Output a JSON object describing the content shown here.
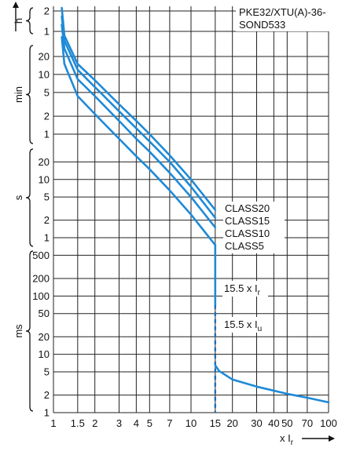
{
  "chart_data": {
    "type": "line",
    "title_lines": [
      "PKE32/XTU(A)-36-",
      "SOND533"
    ],
    "x_axis": {
      "scale": "log",
      "range": [
        1,
        100
      ],
      "ticks": [
        1,
        1.5,
        2,
        3,
        4,
        5,
        7,
        10,
        15,
        20,
        30,
        40,
        50,
        70,
        100
      ],
      "tick_labels": [
        "1",
        "1.5",
        "2",
        "3",
        "4",
        "5",
        "7",
        "10",
        "15",
        "20",
        "30",
        "40",
        "50",
        "70",
        "100"
      ],
      "label_prefix": "x I",
      "label_sub": "r"
    },
    "y_axis_bands": [
      {
        "unit": "h",
        "ticks": [
          1,
          2
        ],
        "labels": [
          "1",
          "2"
        ]
      },
      {
        "unit": "min",
        "ticks": [
          1,
          2,
          5,
          10,
          20
        ],
        "labels": [
          "1",
          "2",
          "5",
          "10",
          "20"
        ]
      },
      {
        "unit": "s",
        "ticks": [
          1,
          2,
          5,
          10,
          20
        ],
        "labels": [
          "1",
          "2",
          "5",
          "10",
          "20"
        ]
      },
      {
        "unit": "ms",
        "ticks": [
          1,
          2,
          5,
          10,
          20,
          50,
          100,
          200,
          500
        ],
        "labels": [
          "1",
          "2",
          "5",
          "10",
          "20",
          "50",
          "100",
          "200",
          "500"
        ]
      }
    ],
    "series": [
      {
        "name": "CLASS20",
        "points": [
          [
            1.15,
            8000
          ],
          [
            1.2,
            3000
          ],
          [
            1.5,
            900
          ],
          [
            2,
            480
          ],
          [
            3,
            190
          ],
          [
            4,
            100
          ],
          [
            5,
            60
          ],
          [
            7,
            26
          ],
          [
            10,
            10
          ],
          [
            15,
            3.0
          ]
        ]
      },
      {
        "name": "CLASS15",
        "points": [
          [
            1.15,
            6000
          ],
          [
            1.2,
            2400
          ],
          [
            1.5,
            720
          ],
          [
            2,
            370
          ],
          [
            3,
            145
          ],
          [
            4,
            75
          ],
          [
            5,
            45
          ],
          [
            7,
            20
          ],
          [
            10,
            7.5
          ],
          [
            15,
            2.2
          ]
        ]
      },
      {
        "name": "CLASS10",
        "points": [
          [
            1.15,
            4500
          ],
          [
            1.2,
            1700
          ],
          [
            1.5,
            500
          ],
          [
            2,
            260
          ],
          [
            3,
            100
          ],
          [
            4,
            50
          ],
          [
            5,
            30
          ],
          [
            7,
            13
          ],
          [
            10,
            5
          ],
          [
            15,
            1.5
          ]
        ]
      },
      {
        "name": "CLASS5",
        "points": [
          [
            1.15,
            2800
          ],
          [
            1.2,
            900
          ],
          [
            1.5,
            260
          ],
          [
            2,
            130
          ],
          [
            3,
            50
          ],
          [
            4,
            25
          ],
          [
            5,
            15
          ],
          [
            7,
            6.5
          ],
          [
            10,
            2.5
          ],
          [
            15,
            0.75
          ]
        ]
      }
    ],
    "vertical_drop": {
      "x": 15,
      "from": 0.75,
      "to": 0.07
    },
    "dashed_segment": {
      "x": 15,
      "from": 0.07,
      "to": 0.001
    },
    "tail_curve": [
      [
        15,
        0.0065
      ],
      [
        16,
        0.0052
      ],
      [
        20,
        0.0037
      ],
      [
        30,
        0.0028
      ],
      [
        50,
        0.0021
      ],
      [
        70,
        0.0018
      ],
      [
        100,
        0.0015
      ]
    ],
    "annotations": [
      {
        "prefix": "15.5 x I",
        "sub": "r"
      },
      {
        "prefix": "15.5 x I",
        "sub": "u"
      }
    ],
    "colors": {
      "curve": "#1e8ad8",
      "grid": "#222222"
    }
  }
}
